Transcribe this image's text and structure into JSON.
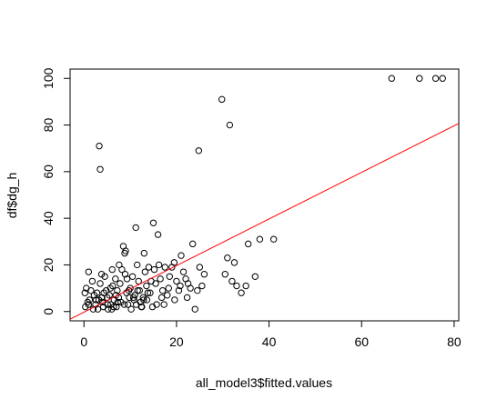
{
  "chart_data": {
    "type": "scatter",
    "title": "",
    "xlabel": "all_model3$fitted.values",
    "ylabel": "df$dg_h",
    "xlim": [
      -3,
      81
    ],
    "ylim": [
      -4,
      104
    ],
    "xticks": [
      0,
      20,
      40,
      60,
      80
    ],
    "yticks": [
      0,
      20,
      40,
      60,
      80,
      100
    ],
    "xtick_labels": [
      "0",
      "20",
      "40",
      "60",
      "80"
    ],
    "ytick_labels": [
      "0",
      "20",
      "40",
      "60",
      "80",
      "100"
    ],
    "grid": false,
    "legend": "none",
    "points": [
      [
        0.2,
        8
      ],
      [
        0.5,
        10
      ],
      [
        0.8,
        4
      ],
      [
        1.0,
        17
      ],
      [
        1.2,
        5
      ],
      [
        1.5,
        9
      ],
      [
        0.3,
        2
      ],
      [
        1.8,
        13
      ],
      [
        2.0,
        1
      ],
      [
        2.2,
        7
      ],
      [
        2.5,
        3
      ],
      [
        2.8,
        8
      ],
      [
        3.0,
        1
      ],
      [
        3.2,
        5
      ],
      [
        3.5,
        12
      ],
      [
        3.3,
        71
      ],
      [
        3.5,
        61
      ],
      [
        3.8,
        16
      ],
      [
        4.0,
        4
      ],
      [
        4.2,
        2
      ],
      [
        4.5,
        15
      ],
      [
        4.8,
        9
      ],
      [
        5.0,
        6
      ],
      [
        5.2,
        1
      ],
      [
        5.5,
        7
      ],
      [
        5.8,
        3
      ],
      [
        6.0,
        1
      ],
      [
        6.2,
        11
      ],
      [
        6.5,
        5
      ],
      [
        6.8,
        14
      ],
      [
        7.0,
        2
      ],
      [
        7.2,
        9
      ],
      [
        7.5,
        6
      ],
      [
        7.8,
        12
      ],
      [
        8.0,
        4
      ],
      [
        8.2,
        18
      ],
      [
        8.5,
        28
      ],
      [
        8.8,
        25
      ],
      [
        9.0,
        26
      ],
      [
        9.2,
        8
      ],
      [
        9.5,
        3
      ],
      [
        9.8,
        6
      ],
      [
        10.0,
        10
      ],
      [
        10.2,
        1
      ],
      [
        10.5,
        15
      ],
      [
        10.8,
        5
      ],
      [
        11.0,
        7
      ],
      [
        11.2,
        36
      ],
      [
        11.5,
        20
      ],
      [
        11.8,
        13
      ],
      [
        12.0,
        9
      ],
      [
        12.2,
        4
      ],
      [
        12.5,
        2
      ],
      [
        12.8,
        6
      ],
      [
        13.0,
        25
      ],
      [
        13.2,
        17
      ],
      [
        13.5,
        11
      ],
      [
        13.8,
        8
      ],
      [
        14.0,
        19
      ],
      [
        14.5,
        13
      ],
      [
        15.0,
        38
      ],
      [
        15.2,
        18
      ],
      [
        15.5,
        12
      ],
      [
        16.0,
        33
      ],
      [
        16.2,
        20
      ],
      [
        16.5,
        14
      ],
      [
        17.0,
        9
      ],
      [
        17.5,
        19
      ],
      [
        18.0,
        7
      ],
      [
        18.5,
        15
      ],
      [
        19.0,
        19
      ],
      [
        19.5,
        21
      ],
      [
        20.0,
        13
      ],
      [
        20.5,
        9
      ],
      [
        21.0,
        24
      ],
      [
        21.5,
        17
      ],
      [
        22.0,
        14
      ],
      [
        22.5,
        12
      ],
      [
        23.0,
        10
      ],
      [
        23.5,
        29
      ],
      [
        24.0,
        1
      ],
      [
        24.5,
        9
      ],
      [
        25.0,
        19
      ],
      [
        25.5,
        11
      ],
      [
        26.0,
        16
      ],
      [
        24.8,
        69
      ],
      [
        29.8,
        91
      ],
      [
        31.5,
        80
      ],
      [
        30.5,
        16
      ],
      [
        31.0,
        23
      ],
      [
        32.0,
        13
      ],
      [
        32.5,
        21
      ],
      [
        33.0,
        11
      ],
      [
        34.0,
        8
      ],
      [
        35.0,
        11
      ],
      [
        35.5,
        29
      ],
      [
        37.0,
        15
      ],
      [
        38.0,
        31
      ],
      [
        41.0,
        31
      ],
      [
        66.5,
        100
      ],
      [
        72.5,
        100
      ],
      [
        76.0,
        100
      ],
      [
        77.5,
        100
      ],
      [
        1.0,
        3
      ],
      [
        2.6,
        5
      ],
      [
        4.3,
        8
      ],
      [
        5.7,
        10
      ],
      [
        6.4,
        2
      ],
      [
        7.3,
        4
      ],
      [
        8.7,
        3
      ],
      [
        9.3,
        14
      ],
      [
        10.7,
        6
      ],
      [
        11.6,
        9
      ],
      [
        12.4,
        2
      ],
      [
        13.6,
        5
      ],
      [
        14.3,
        8
      ],
      [
        15.7,
        3
      ],
      [
        16.8,
        6
      ],
      [
        18.3,
        10
      ],
      [
        19.6,
        5
      ],
      [
        20.8,
        11
      ],
      [
        22.3,
        6
      ],
      [
        6.1,
        18
      ],
      [
        7.6,
        20
      ],
      [
        8.9,
        16
      ],
      [
        3.9,
        6
      ],
      [
        5.1,
        3
      ],
      [
        6.9,
        7
      ],
      [
        9.7,
        9
      ],
      [
        11.3,
        3
      ],
      [
        12.9,
        5
      ],
      [
        14.8,
        2
      ],
      [
        17.3,
        3
      ]
    ],
    "regression_line": {
      "points": [
        [
          -3,
          -3.3
        ],
        [
          81,
          80.7
        ]
      ],
      "color": "#ff0000"
    },
    "marker": "open-circle",
    "marker_color": "#000000"
  }
}
